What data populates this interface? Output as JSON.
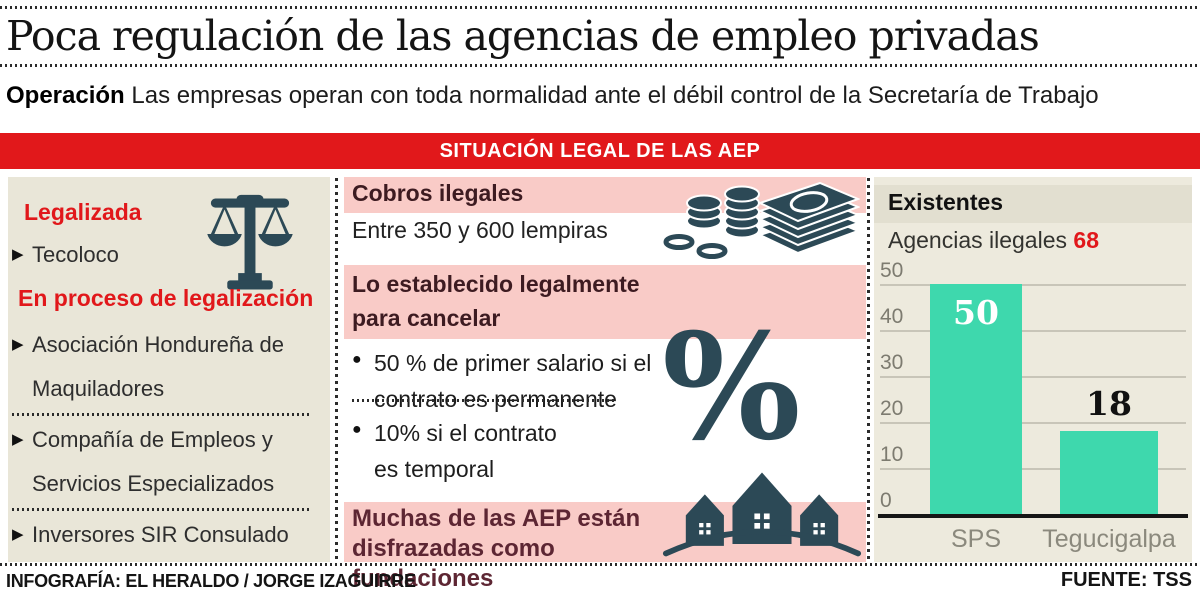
{
  "header": {
    "title": "Poca regulación de las agencias de empleo privadas",
    "subtitle_lead": "Operación",
    "subtitle_rest": " Las empresas operan con toda normalidad ante el débil control de la Secretaría de Trabajo"
  },
  "banner": {
    "label": "SITUACIÓN LEGAL DE LAS AEP"
  },
  "legal_panel": {
    "item_marker": "▶",
    "status_legal": "Legalizada",
    "legal_item": "Tecoloco",
    "status_process": "En proceso de legalización",
    "process_items": [
      "Asociación Hondureña de Maquiladores",
      "Compañía de Empleos y Servicios Especializados",
      "Inversores SIR Consulado"
    ]
  },
  "charges_panel": {
    "bullet_marker": "●",
    "illegal_title": "Cobros ilegales",
    "illegal_detail": "Entre 350 y 600 lempiras",
    "legal_title": "Lo establecido legalmente para cancelar",
    "bullets": [
      "50 % de primer salario si el contrato es permanente",
      "10% si el contrato es temporal"
    ],
    "percent_symbol": "%",
    "note": "Muchas de las AEP están disfrazadas como fundaciones"
  },
  "chart_panel": {
    "title": "Existentes",
    "subtitle_label": "Agencias ilegales",
    "subtitle_value": "68"
  },
  "chart_data": {
    "type": "bar",
    "title": "Existentes",
    "subtitle": "Agencias ilegales 68",
    "categories": [
      "SPS",
      "Tegucigalpa"
    ],
    "values": [
      50,
      18
    ],
    "ylim": [
      0,
      50
    ],
    "yticks": [
      0,
      10,
      20,
      30,
      40,
      50
    ],
    "grid": true,
    "bar_color": "#3ed8ad",
    "legend_position": "none"
  },
  "footer": {
    "credit": "INFOGRAFÍA: EL HERALDO / JORGE IZAGUIRRE",
    "source": "FUENTE: TSS"
  },
  "colors": {
    "accent_red": "#e1181b",
    "pink_band": "#f9cbc7",
    "beige_left": "#e9e6d8",
    "beige_right": "#edeadd",
    "icon_slate": "#2c4956",
    "bar_teal": "#3ed8ad"
  }
}
